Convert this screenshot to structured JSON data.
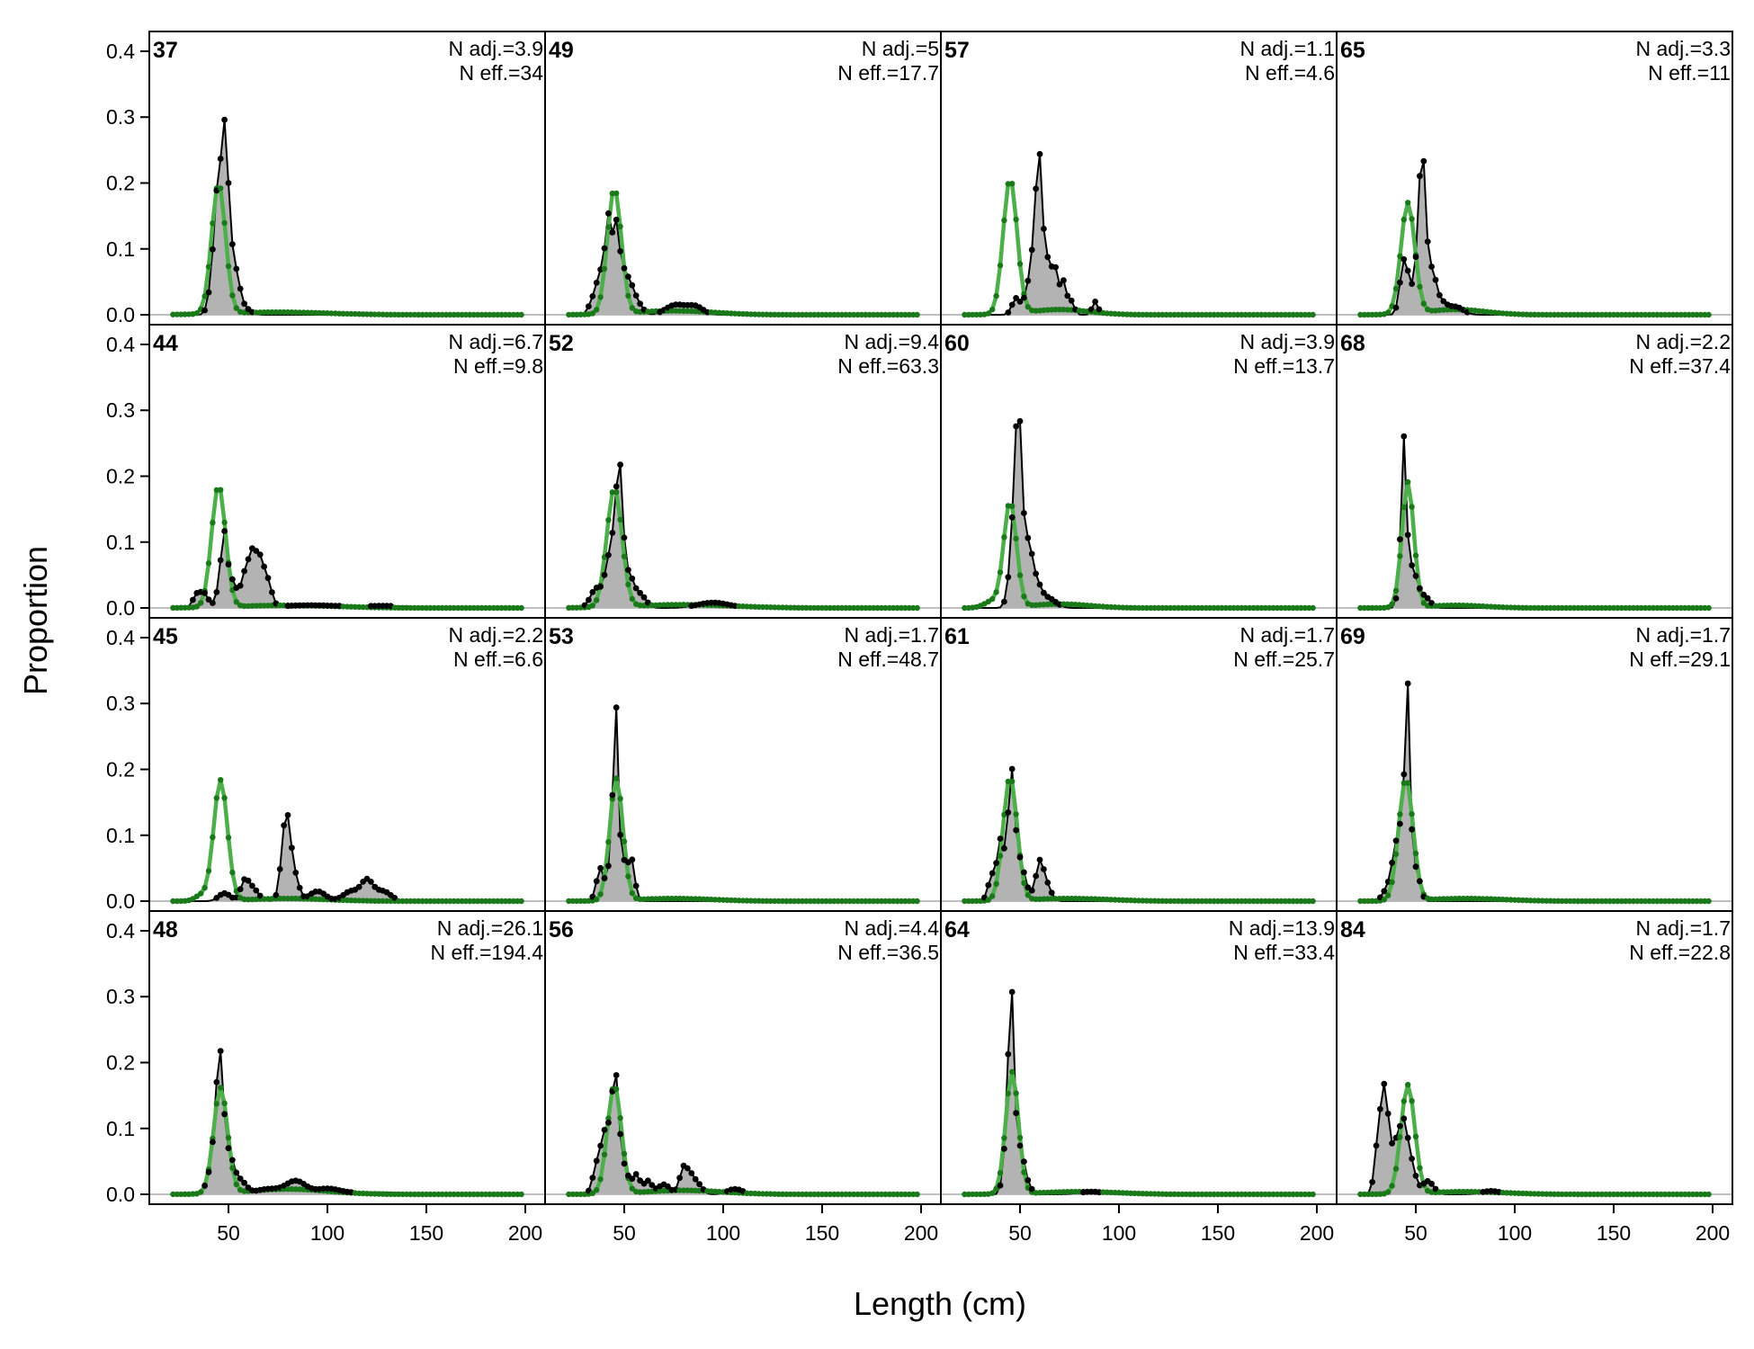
{
  "chart_data": {
    "type": "line",
    "layout": "4x4 small multiples, shared axes",
    "xlabel": "Length (cm)",
    "ylabel": "Proportion",
    "xlim": [
      10,
      210
    ],
    "ylim": [
      -0.015,
      0.43
    ],
    "x_ticks": [
      50,
      100,
      150,
      200
    ],
    "x_tick_labels": [
      "50",
      "100",
      "150",
      "200"
    ],
    "y_ticks": [
      0.0,
      0.1,
      0.2,
      0.3,
      0.4
    ],
    "y_tick_labels": [
      "0.0",
      "0.1",
      "0.2",
      "0.3",
      "0.4"
    ],
    "x_range_bins": [
      22,
      198
    ],
    "x_bin_width": 2,
    "series_styles": {
      "observed": {
        "line": "#000000",
        "fill": "#b3b3b3",
        "marker": "#000000"
      },
      "expected": {
        "line": "#4daf4a",
        "marker": "#1a7a1a"
      }
    },
    "colors": {
      "axis": "#000000",
      "zero_line": "#bfbfbf"
    },
    "panels": [
      {
        "id": "37",
        "n_adj": "N adj.=3.9",
        "n_eff": "N eff.=34",
        "row": 0,
        "col": 0,
        "obs_peaks": [
          {
            "x": 42,
            "y": 0.05,
            "w": 2
          },
          {
            "x": 44,
            "y": 0.08,
            "w": 1.5
          },
          {
            "x": 46,
            "y": 0.12,
            "w": 2
          },
          {
            "x": 48,
            "y": 0.15,
            "w": 1.5
          },
          {
            "x": 50,
            "y": 0.115,
            "w": 2
          },
          {
            "x": 54,
            "y": 0.05,
            "w": 2
          },
          {
            "x": 58,
            "y": 0.01,
            "w": 3
          }
        ],
        "exp_peaks": [
          {
            "x": 45,
            "y": 0.198,
            "w": 3.5
          },
          {
            "x": 75,
            "y": 0.004,
            "w": 25
          }
        ]
      },
      {
        "id": "49",
        "n_adj": "N adj.=5",
        "n_eff": "N eff.=17.7",
        "row": 0,
        "col": 1,
        "obs_peaks": [
          {
            "x": 34,
            "y": 0.02,
            "w": 2
          },
          {
            "x": 38,
            "y": 0.06,
            "w": 2
          },
          {
            "x": 42,
            "y": 0.14,
            "w": 1.6
          },
          {
            "x": 46,
            "y": 0.13,
            "w": 1.6
          },
          {
            "x": 50,
            "y": 0.06,
            "w": 2
          },
          {
            "x": 54,
            "y": 0.035,
            "w": 2
          },
          {
            "x": 58,
            "y": 0.012,
            "w": 2
          },
          {
            "x": 76,
            "y": 0.015,
            "w": 5
          },
          {
            "x": 86,
            "y": 0.012,
            "w": 4
          }
        ],
        "exp_peaks": [
          {
            "x": 45,
            "y": 0.19,
            "w": 3.5
          },
          {
            "x": 75,
            "y": 0.006,
            "w": 20
          }
        ]
      },
      {
        "id": "57",
        "n_adj": "N adj.=1.1",
        "n_eff": "N eff.=4.6",
        "row": 0,
        "col": 2,
        "obs_peaks": [
          {
            "x": 48,
            "y": 0.025,
            "w": 2
          },
          {
            "x": 54,
            "y": 0.035,
            "w": 2
          },
          {
            "x": 58,
            "y": 0.12,
            "w": 2
          },
          {
            "x": 60,
            "y": 0.16,
            "w": 1.5
          },
          {
            "x": 64,
            "y": 0.08,
            "w": 2
          },
          {
            "x": 68,
            "y": 0.06,
            "w": 1.5
          },
          {
            "x": 72,
            "y": 0.05,
            "w": 1.5
          },
          {
            "x": 76,
            "y": 0.02,
            "w": 1.5
          },
          {
            "x": 88,
            "y": 0.02,
            "w": 1.5
          }
        ],
        "exp_peaks": [
          {
            "x": 45,
            "y": 0.205,
            "w": 3.5
          },
          {
            "x": 70,
            "y": 0.008,
            "w": 15
          }
        ]
      },
      {
        "id": "65",
        "n_adj": "N adj.=3.3",
        "n_eff": "N eff.=11",
        "row": 0,
        "col": 3,
        "obs_peaks": [
          {
            "x": 44,
            "y": 0.08,
            "w": 2
          },
          {
            "x": 48,
            "y": 0.03,
            "w": 2
          },
          {
            "x": 52,
            "y": 0.14,
            "w": 1.6
          },
          {
            "x": 54,
            "y": 0.16,
            "w": 1.5
          },
          {
            "x": 58,
            "y": 0.06,
            "w": 2
          },
          {
            "x": 62,
            "y": 0.02,
            "w": 3
          },
          {
            "x": 70,
            "y": 0.012,
            "w": 4
          }
        ],
        "exp_peaks": [
          {
            "x": 46,
            "y": 0.168,
            "w": 3.5
          },
          {
            "x": 70,
            "y": 0.008,
            "w": 15
          }
        ]
      },
      {
        "id": "44",
        "n_adj": "N adj.=6.7",
        "n_eff": "N eff.=9.8",
        "row": 1,
        "col": 0,
        "obs_peaks": [
          {
            "x": 34,
            "y": 0.02,
            "w": 2
          },
          {
            "x": 38,
            "y": 0.02,
            "w": 2
          },
          {
            "x": 46,
            "y": 0.035,
            "w": 2
          },
          {
            "x": 48,
            "y": 0.09,
            "w": 1.5
          },
          {
            "x": 52,
            "y": 0.04,
            "w": 2
          },
          {
            "x": 58,
            "y": 0.045,
            "w": 2
          },
          {
            "x": 62,
            "y": 0.075,
            "w": 2
          },
          {
            "x": 66,
            "y": 0.065,
            "w": 2
          },
          {
            "x": 70,
            "y": 0.035,
            "w": 2
          },
          {
            "x": 90,
            "y": 0.004,
            "w": 15
          },
          {
            "x": 130,
            "y": 0.003,
            "w": 15
          }
        ],
        "exp_peaks": [
          {
            "x": 45,
            "y": 0.185,
            "w": 3.5
          },
          {
            "x": 80,
            "y": 0.004,
            "w": 25
          }
        ]
      },
      {
        "id": "52",
        "n_adj": "N adj.=9.4",
        "n_eff": "N eff.=63.3",
        "row": 1,
        "col": 1,
        "obs_peaks": [
          {
            "x": 36,
            "y": 0.03,
            "w": 3
          },
          {
            "x": 42,
            "y": 0.06,
            "w": 2
          },
          {
            "x": 46,
            "y": 0.12,
            "w": 2
          },
          {
            "x": 48,
            "y": 0.13,
            "w": 1.5
          },
          {
            "x": 52,
            "y": 0.05,
            "w": 2.5
          },
          {
            "x": 58,
            "y": 0.02,
            "w": 3
          },
          {
            "x": 95,
            "y": 0.008,
            "w": 8
          }
        ],
        "exp_peaks": [
          {
            "x": 45,
            "y": 0.18,
            "w": 3.8
          },
          {
            "x": 80,
            "y": 0.005,
            "w": 25
          }
        ]
      },
      {
        "id": "60",
        "n_adj": "N adj.=3.9",
        "n_eff": "N eff.=13.7",
        "row": 1,
        "col": 2,
        "obs_peaks": [
          {
            "x": 46,
            "y": 0.07,
            "w": 2
          },
          {
            "x": 48,
            "y": 0.15,
            "w": 1.5
          },
          {
            "x": 50,
            "y": 0.2,
            "w": 1.5
          },
          {
            "x": 54,
            "y": 0.09,
            "w": 2
          },
          {
            "x": 58,
            "y": 0.035,
            "w": 2.5
          },
          {
            "x": 64,
            "y": 0.015,
            "w": 4
          }
        ],
        "exp_peaks": [
          {
            "x": 45,
            "y": 0.16,
            "w": 3.2
          },
          {
            "x": 36,
            "y": 0.01,
            "w": 4
          },
          {
            "x": 70,
            "y": 0.006,
            "w": 15
          }
        ]
      },
      {
        "id": "68",
        "n_adj": "N adj.=2.2",
        "n_eff": "N eff.=37.4",
        "row": 1,
        "col": 3,
        "obs_peaks": [
          {
            "x": 42,
            "y": 0.03,
            "w": 1.5
          },
          {
            "x": 44,
            "y": 0.24,
            "w": 1.3
          },
          {
            "x": 48,
            "y": 0.06,
            "w": 2
          },
          {
            "x": 52,
            "y": 0.02,
            "w": 2
          },
          {
            "x": 56,
            "y": 0.012,
            "w": 2
          }
        ],
        "exp_peaks": [
          {
            "x": 46,
            "y": 0.19,
            "w": 3
          },
          {
            "x": 70,
            "y": 0.004,
            "w": 15
          }
        ]
      },
      {
        "id": "45",
        "n_adj": "N adj.=2.2",
        "n_eff": "N eff.=6.6",
        "row": 2,
        "col": 0,
        "obs_peaks": [
          {
            "x": 48,
            "y": 0.012,
            "w": 3
          },
          {
            "x": 58,
            "y": 0.025,
            "w": 2
          },
          {
            "x": 62,
            "y": 0.02,
            "w": 3
          },
          {
            "x": 78,
            "y": 0.06,
            "w": 2
          },
          {
            "x": 80,
            "y": 0.09,
            "w": 2
          },
          {
            "x": 84,
            "y": 0.03,
            "w": 2
          },
          {
            "x": 95,
            "y": 0.015,
            "w": 4
          },
          {
            "x": 112,
            "y": 0.015,
            "w": 4
          },
          {
            "x": 120,
            "y": 0.03,
            "w": 3
          },
          {
            "x": 128,
            "y": 0.015,
            "w": 4
          }
        ],
        "exp_peaks": [
          {
            "x": 46,
            "y": 0.183,
            "w": 3.5
          },
          {
            "x": 36,
            "y": 0.008,
            "w": 3
          },
          {
            "x": 80,
            "y": 0.004,
            "w": 20
          }
        ]
      },
      {
        "id": "53",
        "n_adj": "N adj.=1.7",
        "n_eff": "N eff.=48.7",
        "row": 2,
        "col": 1,
        "obs_peaks": [
          {
            "x": 38,
            "y": 0.05,
            "w": 2
          },
          {
            "x": 44,
            "y": 0.1,
            "w": 1.6
          },
          {
            "x": 46,
            "y": 0.24,
            "w": 1.2
          },
          {
            "x": 50,
            "y": 0.06,
            "w": 2
          },
          {
            "x": 54,
            "y": 0.055,
            "w": 1.5
          }
        ],
        "exp_peaks": [
          {
            "x": 46,
            "y": 0.185,
            "w": 3.3
          },
          {
            "x": 75,
            "y": 0.004,
            "w": 20
          }
        ]
      },
      {
        "id": "61",
        "n_adj": "N adj.=1.7",
        "n_eff": "N eff.=25.7",
        "row": 2,
        "col": 2,
        "obs_peaks": [
          {
            "x": 36,
            "y": 0.04,
            "w": 2
          },
          {
            "x": 40,
            "y": 0.08,
            "w": 1.5
          },
          {
            "x": 44,
            "y": 0.07,
            "w": 2
          },
          {
            "x": 46,
            "y": 0.15,
            "w": 1.5
          },
          {
            "x": 50,
            "y": 0.06,
            "w": 2
          },
          {
            "x": 54,
            "y": 0.012,
            "w": 2
          },
          {
            "x": 60,
            "y": 0.06,
            "w": 2
          },
          {
            "x": 64,
            "y": 0.02,
            "w": 2
          }
        ],
        "exp_peaks": [
          {
            "x": 45,
            "y": 0.188,
            "w": 3.5
          },
          {
            "x": 75,
            "y": 0.004,
            "w": 20
          }
        ]
      },
      {
        "id": "69",
        "n_adj": "N adj.=1.7",
        "n_eff": "N eff.=29.1",
        "row": 2,
        "col": 3,
        "obs_peaks": [
          {
            "x": 36,
            "y": 0.02,
            "w": 2.5
          },
          {
            "x": 40,
            "y": 0.07,
            "w": 2
          },
          {
            "x": 44,
            "y": 0.12,
            "w": 2
          },
          {
            "x": 46,
            "y": 0.25,
            "w": 1.2
          },
          {
            "x": 50,
            "y": 0.05,
            "w": 2
          }
        ],
        "exp_peaks": [
          {
            "x": 45,
            "y": 0.185,
            "w": 3.6
          },
          {
            "x": 75,
            "y": 0.004,
            "w": 20
          }
        ]
      },
      {
        "id": "48",
        "n_adj": "N adj.=26.1",
        "n_eff": "N eff.=194.4",
        "row": 3,
        "col": 0,
        "obs_peaks": [
          {
            "x": 40,
            "y": 0.02,
            "w": 2
          },
          {
            "x": 44,
            "y": 0.1,
            "w": 2
          },
          {
            "x": 46,
            "y": 0.14,
            "w": 1.6
          },
          {
            "x": 50,
            "y": 0.06,
            "w": 2.5
          },
          {
            "x": 56,
            "y": 0.02,
            "w": 3
          },
          {
            "x": 70,
            "y": 0.008,
            "w": 6
          },
          {
            "x": 84,
            "y": 0.02,
            "w": 5
          },
          {
            "x": 100,
            "y": 0.008,
            "w": 6
          },
          {
            "x": 125,
            "y": 0.003,
            "w": 15
          }
        ],
        "exp_peaks": [
          {
            "x": 46,
            "y": 0.16,
            "w": 3.5
          },
          {
            "x": 80,
            "y": 0.008,
            "w": 20
          }
        ]
      },
      {
        "id": "56",
        "n_adj": "N adj.=4.4",
        "n_eff": "N eff.=36.5",
        "row": 3,
        "col": 1,
        "obs_peaks": [
          {
            "x": 36,
            "y": 0.04,
            "w": 2
          },
          {
            "x": 40,
            "y": 0.08,
            "w": 2
          },
          {
            "x": 44,
            "y": 0.09,
            "w": 2
          },
          {
            "x": 46,
            "y": 0.12,
            "w": 1.6
          },
          {
            "x": 50,
            "y": 0.04,
            "w": 2
          },
          {
            "x": 56,
            "y": 0.03,
            "w": 2
          },
          {
            "x": 62,
            "y": 0.02,
            "w": 2
          },
          {
            "x": 70,
            "y": 0.015,
            "w": 3
          },
          {
            "x": 80,
            "y": 0.04,
            "w": 2
          },
          {
            "x": 84,
            "y": 0.025,
            "w": 2
          },
          {
            "x": 88,
            "y": 0.012,
            "w": 2
          },
          {
            "x": 106,
            "y": 0.008,
            "w": 4
          }
        ],
        "exp_peaks": [
          {
            "x": 45,
            "y": 0.165,
            "w": 3.5
          },
          {
            "x": 80,
            "y": 0.006,
            "w": 20
          }
        ]
      },
      {
        "id": "64",
        "n_adj": "N adj.=13.9",
        "n_eff": "N eff.=33.4",
        "row": 3,
        "col": 2,
        "obs_peaks": [
          {
            "x": 42,
            "y": 0.03,
            "w": 1.5
          },
          {
            "x": 44,
            "y": 0.12,
            "w": 1.3
          },
          {
            "x": 46,
            "y": 0.26,
            "w": 1.3
          },
          {
            "x": 50,
            "y": 0.07,
            "w": 2
          },
          {
            "x": 54,
            "y": 0.012,
            "w": 2
          },
          {
            "x": 86,
            "y": 0.004,
            "w": 6
          }
        ],
        "exp_peaks": [
          {
            "x": 46,
            "y": 0.185,
            "w": 3.2
          },
          {
            "x": 80,
            "y": 0.004,
            "w": 20
          }
        ]
      },
      {
        "id": "84",
        "n_adj": "N adj.=1.7",
        "n_eff": "N eff.=22.8",
        "row": 3,
        "col": 3,
        "obs_peaks": [
          {
            "x": 30,
            "y": 0.04,
            "w": 1.5
          },
          {
            "x": 32,
            "y": 0.08,
            "w": 1.5
          },
          {
            "x": 34,
            "y": 0.1,
            "w": 1.3
          },
          {
            "x": 36,
            "y": 0.08,
            "w": 1.5
          },
          {
            "x": 40,
            "y": 0.07,
            "w": 2
          },
          {
            "x": 44,
            "y": 0.1,
            "w": 2
          },
          {
            "x": 48,
            "y": 0.04,
            "w": 2
          },
          {
            "x": 56,
            "y": 0.02,
            "w": 3
          },
          {
            "x": 88,
            "y": 0.005,
            "w": 5
          }
        ],
        "exp_peaks": [
          {
            "x": 46,
            "y": 0.165,
            "w": 3.5
          },
          {
            "x": 75,
            "y": 0.004,
            "w": 20
          }
        ]
      }
    ]
  }
}
